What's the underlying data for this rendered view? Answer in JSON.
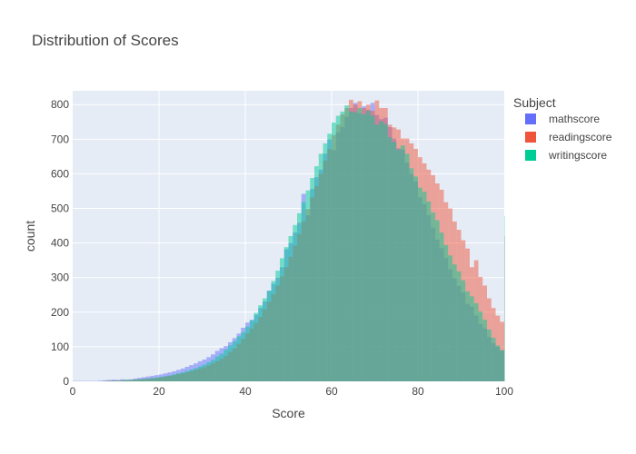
{
  "chart_data": {
    "type": "bar",
    "subtype": "overlaid-histogram",
    "title": "Distribution of Scores",
    "xlabel": "Score",
    "ylabel": "count",
    "xlim": [
      0,
      100
    ],
    "ylim": [
      0,
      840
    ],
    "x_ticks": [
      0,
      20,
      40,
      60,
      80,
      100
    ],
    "y_ticks": [
      0,
      100,
      200,
      300,
      400,
      500,
      600,
      700,
      800
    ],
    "grid": true,
    "legend_position": "top-right",
    "legend_title": "Subject",
    "bin_width": 1,
    "bin_start": 0,
    "series": [
      {
        "name": "mathscore",
        "color": "#636EFA",
        "values": [
          1,
          1,
          1,
          1,
          1,
          1,
          2,
          3,
          4,
          5,
          4,
          6,
          5,
          6,
          8,
          10,
          12,
          14,
          16,
          18,
          20,
          23,
          26,
          29,
          33,
          37,
          42,
          47,
          52,
          58,
          63,
          70,
          78,
          88,
          96,
          102,
          113,
          125,
          138,
          155,
          170,
          178,
          192,
          212,
          231,
          262,
          282,
          300,
          330,
          382,
          400,
          430,
          458,
          542,
          480,
          556,
          590,
          612,
          658,
          700,
          668,
          720,
          735,
          765,
          790,
          805,
          775,
          795,
          785,
          805,
          770,
          758,
          762,
          735,
          702,
          674,
          670,
          632,
          600,
          578,
          532,
          512,
          480,
          444,
          410,
          385,
          356,
          324,
          298,
          276,
          257,
          224,
          216,
          190,
          166,
          153,
          128,
          110,
          100,
          90,
          418
        ]
      },
      {
        "name": "readingscore",
        "color": "#EF553B",
        "values": [
          0,
          0,
          0,
          0,
          0,
          0,
          0,
          1,
          2,
          2,
          3,
          3,
          4,
          4,
          5,
          6,
          7,
          8,
          9,
          10,
          12,
          14,
          16,
          18,
          21,
          23,
          26,
          29,
          33,
          37,
          41,
          46,
          52,
          58,
          65,
          74,
          85,
          95,
          108,
          122,
          138,
          152,
          168,
          186,
          208,
          230,
          252,
          276,
          303,
          330,
          360,
          392,
          426,
          462,
          498,
          532,
          564,
          600,
          638,
          672,
          712,
          742,
          772,
          790,
          814,
          800,
          810,
          790,
          800,
          782,
          812,
          790,
          790,
          742,
          734,
          728,
          702,
          702,
          688,
          672,
          648,
          630,
          612,
          596,
          572,
          554,
          518,
          500,
          462,
          438,
          408,
          384,
          330,
          350,
          302,
          277,
          240,
          212,
          190,
          172,
          420
        ]
      },
      {
        "name": "writingscore",
        "color": "#00CC96",
        "values": [
          0,
          0,
          0,
          0,
          0,
          0,
          0,
          1,
          1,
          2,
          2,
          3,
          4,
          4,
          5,
          6,
          7,
          8,
          10,
          11,
          13,
          15,
          17,
          20,
          23,
          26,
          30,
          34,
          38,
          43,
          48,
          55,
          62,
          72,
          80,
          92,
          104,
          116,
          130,
          142,
          158,
          176,
          198,
          220,
          240,
          262,
          290,
          320,
          356,
          388,
          420,
          452,
          486,
          518,
          552,
          588,
          622,
          658,
          688,
          716,
          748,
          768,
          780,
          798,
          780,
          778,
          790,
          772,
          782,
          768,
          742,
          752,
          744,
          706,
          692,
          670,
          682,
          658,
          616,
          592,
          560,
          548,
          520,
          488,
          466,
          430,
          394,
          364,
          338,
          318,
          292,
          260,
          246,
          226,
          202,
          178,
          150,
          126,
          104,
          90,
          478
        ]
      }
    ]
  }
}
